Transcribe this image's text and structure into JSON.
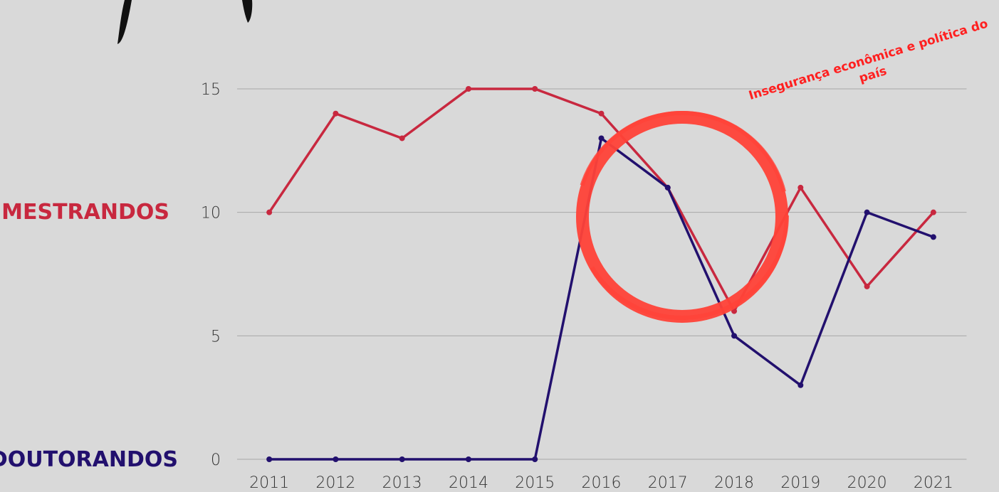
{
  "chart_data": {
    "type": "line",
    "categories": [
      "2011",
      "2012",
      "2013",
      "2014",
      "2015",
      "2016",
      "2017",
      "2018",
      "2019",
      "2020",
      "2021"
    ],
    "series": [
      {
        "name": "MESTRANDOS",
        "color": "#c8283f",
        "values": [
          10,
          14,
          13,
          15,
          15,
          14,
          11,
          6,
          11,
          7,
          10
        ]
      },
      {
        "name": "DOUTORANDOS",
        "color": "#22106e",
        "values": [
          0,
          0,
          0,
          0,
          0,
          13,
          11,
          5,
          3,
          10,
          9
        ]
      }
    ],
    "ylim": [
      0,
      15
    ],
    "yticks": [
      0,
      5,
      10,
      15
    ],
    "grid": true,
    "annotation": "Insegurança econômica e política do país"
  }
}
